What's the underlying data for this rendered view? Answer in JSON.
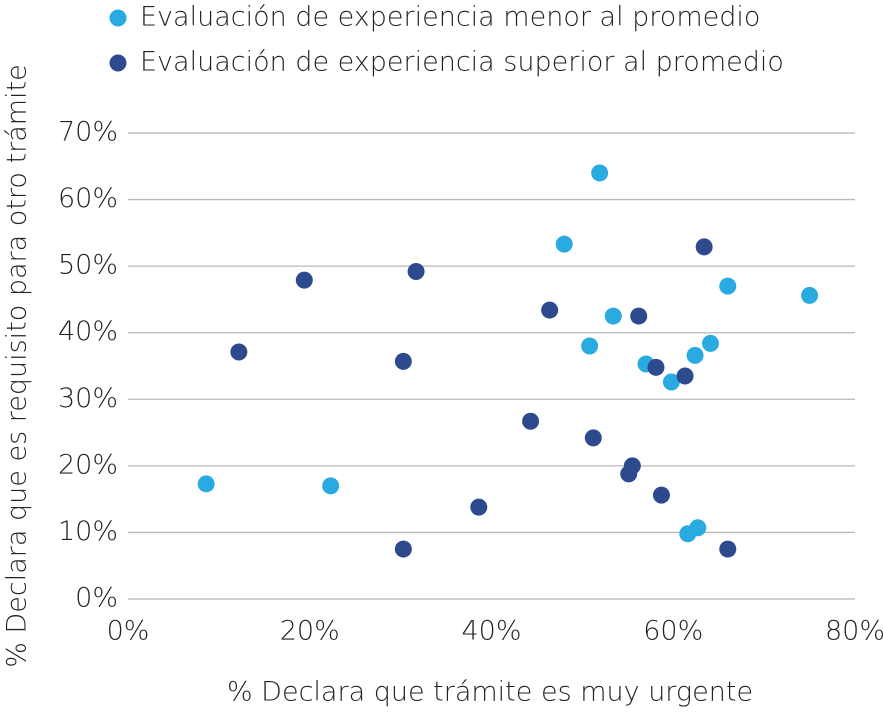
{
  "chart_data": {
    "type": "scatter",
    "xlabel": "% Declara que trámite es muy urgente",
    "ylabel": "% Declara que es requisito para otro trámite",
    "xlim": [
      0,
      80
    ],
    "ylim": [
      0,
      70
    ],
    "xticks": [
      {
        "value": 0,
        "label": "0%"
      },
      {
        "value": 20,
        "label": "20%"
      },
      {
        "value": 40,
        "label": "40%"
      },
      {
        "value": 60,
        "label": "60%"
      },
      {
        "value": 80,
        "label": "80%"
      }
    ],
    "yticks": [
      {
        "value": 0,
        "label": "0%"
      },
      {
        "value": 10,
        "label": "10%"
      },
      {
        "value": 20,
        "label": "20%"
      },
      {
        "value": 30,
        "label": "30%"
      },
      {
        "value": 40,
        "label": "40%"
      },
      {
        "value": 50,
        "label": "50%"
      },
      {
        "value": 60,
        "label": "60%"
      },
      {
        "value": 70,
        "label": "70%"
      }
    ],
    "grid": true,
    "legend": "top",
    "series": [
      {
        "name": "Evaluación de experiencia menor al promedio",
        "color": "#29abe2",
        "x": [
          8.6,
          22.3,
          51.9,
          48.0,
          53.4,
          50.8,
          57.0,
          59.8,
          62.4,
          64.1,
          66.0,
          75.0,
          61.6,
          62.7
        ],
        "values": [
          17.3,
          17.0,
          64.0,
          53.3,
          42.5,
          38.0,
          35.3,
          32.6,
          36.6,
          38.4,
          47.0,
          45.6,
          9.8,
          10.7
        ]
      },
      {
        "name": "Evaluación de experiencia superior al promedio",
        "color": "#2e4a8e",
        "x": [
          12.2,
          19.4,
          30.3,
          31.7,
          30.3,
          38.6,
          44.3,
          46.4,
          51.2,
          56.2,
          55.5,
          55.1,
          58.1,
          61.3,
          63.4,
          58.7,
          66.0
        ],
        "values": [
          37.1,
          47.9,
          35.7,
          49.2,
          7.5,
          13.8,
          26.7,
          43.4,
          24.2,
          42.5,
          20.0,
          18.8,
          34.8,
          33.5,
          52.9,
          15.6,
          7.5
        ]
      }
    ]
  }
}
